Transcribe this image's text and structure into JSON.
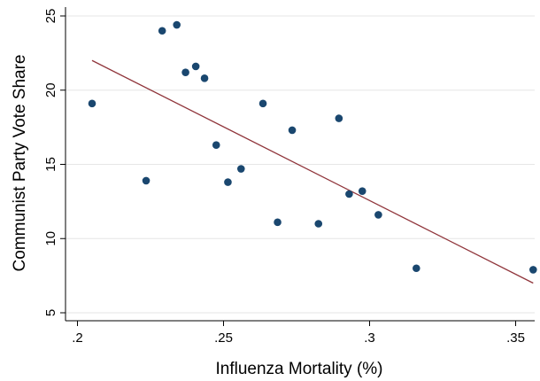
{
  "chart_data": {
    "type": "scatter",
    "xlabel": "Influenza Mortality (%)",
    "ylabel": "Communist Party Vote Share",
    "xlim": [
      0.2,
      0.36
    ],
    "ylim": [
      5,
      25
    ],
    "x_ticks": [
      0.2,
      0.25,
      0.3,
      0.35
    ],
    "x_tick_labels": [
      ".2",
      ".25",
      ".3",
      ".35"
    ],
    "y_ticks": [
      5,
      10,
      15,
      20,
      25
    ],
    "y_tick_labels": [
      "5",
      "10",
      "15",
      "20",
      "25"
    ],
    "grid": true,
    "legend": "none",
    "points": [
      {
        "x": 0.205,
        "y": 19.1
      },
      {
        "x": 0.2235,
        "y": 13.9
      },
      {
        "x": 0.229,
        "y": 24.0
      },
      {
        "x": 0.234,
        "y": 24.4
      },
      {
        "x": 0.237,
        "y": 21.2
      },
      {
        "x": 0.2405,
        "y": 21.6
      },
      {
        "x": 0.2435,
        "y": 20.8
      },
      {
        "x": 0.2475,
        "y": 16.3
      },
      {
        "x": 0.2515,
        "y": 13.8
      },
      {
        "x": 0.256,
        "y": 14.7
      },
      {
        "x": 0.2635,
        "y": 19.1
      },
      {
        "x": 0.2685,
        "y": 11.1
      },
      {
        "x": 0.2735,
        "y": 17.3
      },
      {
        "x": 0.2825,
        "y": 11.0
      },
      {
        "x": 0.2895,
        "y": 18.1
      },
      {
        "x": 0.293,
        "y": 13.0
      },
      {
        "x": 0.2975,
        "y": 13.2
      },
      {
        "x": 0.303,
        "y": 11.6
      },
      {
        "x": 0.316,
        "y": 8.0
      },
      {
        "x": 0.356,
        "y": 7.9
      }
    ],
    "fit_line": {
      "x": [
        0.205,
        0.356
      ],
      "y": [
        22.0,
        7.0
      ]
    },
    "colors": {
      "points": "#1a476f",
      "fit_line": "#90353b",
      "grid": "#e6e6e6"
    }
  }
}
